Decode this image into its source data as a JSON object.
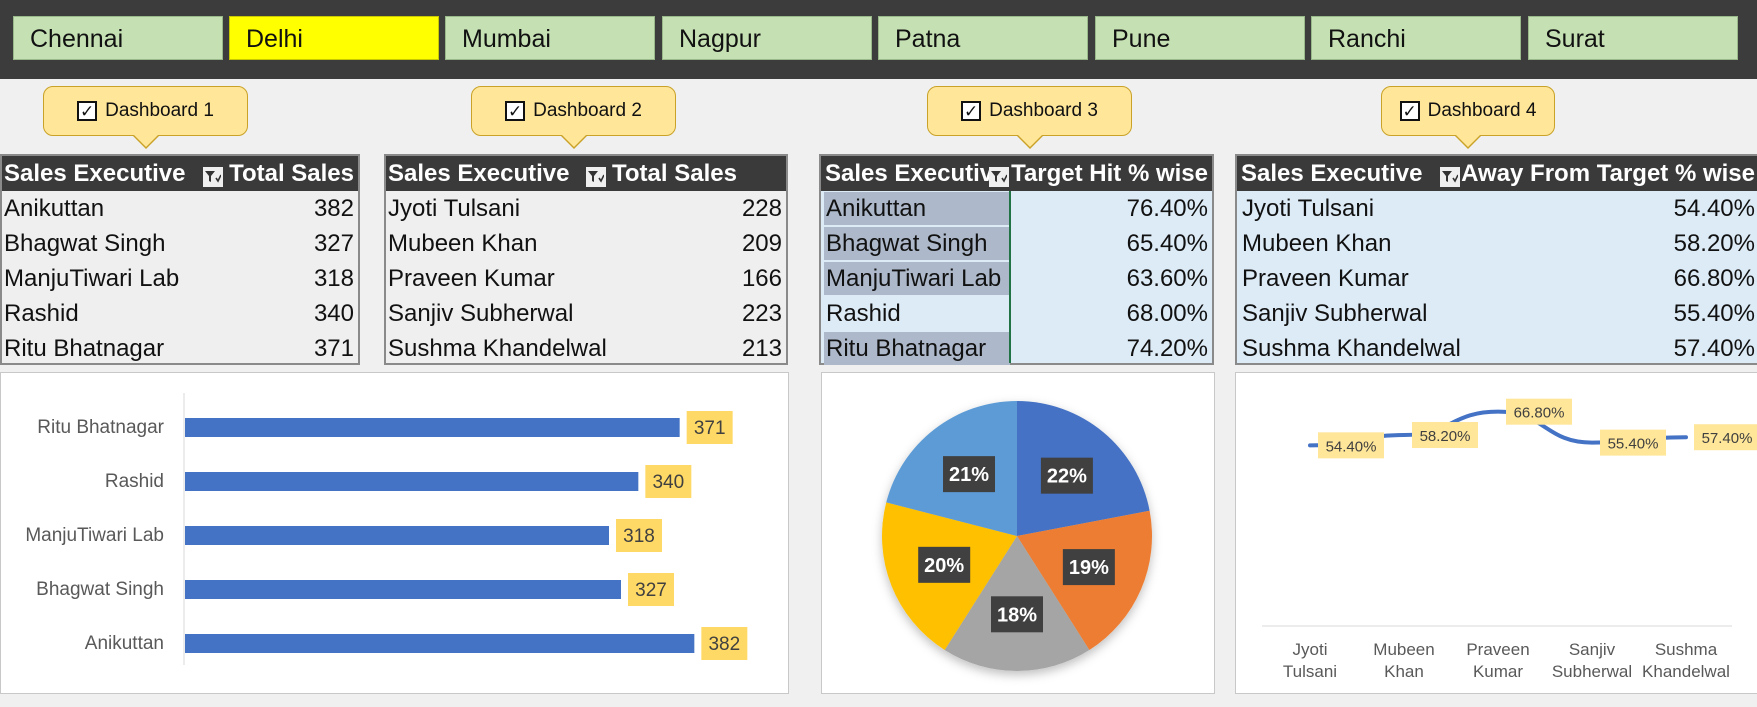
{
  "slicer": {
    "items": [
      {
        "label": "Chennai",
        "selected": false
      },
      {
        "label": "Delhi",
        "selected": true
      },
      {
        "label": "Mumbai",
        "selected": false
      },
      {
        "label": "Nagpur",
        "selected": false
      },
      {
        "label": "Patna",
        "selected": false
      },
      {
        "label": "Pune",
        "selected": false
      },
      {
        "label": "Ranchi",
        "selected": false
      },
      {
        "label": "Surat",
        "selected": false
      }
    ],
    "selected_color": "#ffff00",
    "item_color": "#c5e0b3"
  },
  "dashboards": [
    {
      "label": "Dashboard 1",
      "checked": true
    },
    {
      "label": "Dashboard 2",
      "checked": true
    },
    {
      "label": "Dashboard 3",
      "checked": true
    },
    {
      "label": "Dashboard 4",
      "checked": true
    }
  ],
  "tables": [
    {
      "headers": [
        "Sales Executive",
        "Total Sales"
      ],
      "rows": [
        [
          "Anikuttan",
          "382"
        ],
        [
          "Bhagwat Singh",
          "327"
        ],
        [
          "ManjuTiwari Lab",
          "318"
        ],
        [
          "Rashid",
          "340"
        ],
        [
          "Ritu Bhatnagar",
          "371"
        ]
      ]
    },
    {
      "headers": [
        "Sales Executive",
        "Total Sales"
      ],
      "rows": [
        [
          "Jyoti Tulsani",
          "228"
        ],
        [
          "Mubeen Khan",
          "209"
        ],
        [
          "Praveen Kumar",
          "166"
        ],
        [
          "Sanjiv Subherwal",
          "223"
        ],
        [
          "Sushma Khandelwal",
          "213"
        ]
      ]
    },
    {
      "headers": [
        "Sales Executive",
        "Target Hit % wise"
      ],
      "rows": [
        [
          "Anikuttan",
          "76.40%"
        ],
        [
          "Bhagwat Singh",
          "65.40%"
        ],
        [
          "ManjuTiwari Lab",
          "63.60%"
        ],
        [
          "Rashid",
          "68.00%"
        ],
        [
          "Ritu Bhatnagar",
          "74.20%"
        ]
      ]
    },
    {
      "headers": [
        "Sales Executive",
        "Away From Target % wise"
      ],
      "rows": [
        [
          "Jyoti Tulsani",
          "54.40%"
        ],
        [
          "Mubeen Khan",
          "58.20%"
        ],
        [
          "Praveen Kumar",
          "66.80%"
        ],
        [
          "Sanjiv Subherwal",
          "55.40%"
        ],
        [
          "Sushma Khandelwal",
          "57.40%"
        ]
      ]
    }
  ],
  "chart_data": [
    {
      "type": "bar",
      "orientation": "horizontal",
      "categories": [
        "Ritu Bhatnagar",
        "Rashid",
        "ManjuTiwari Lab",
        "Bhagwat Singh",
        "Anikuttan"
      ],
      "values": [
        371,
        340,
        318,
        327,
        382
      ],
      "data_labels": [
        "371",
        "340",
        "318",
        "327",
        "382"
      ],
      "xlim": [
        0,
        420
      ],
      "bar_color": "#4472c4",
      "label_bg": "#ffd966",
      "grid": false
    },
    {
      "type": "pie",
      "values": [
        22,
        19,
        18,
        20,
        21
      ],
      "data_labels": [
        "22%",
        "19%",
        "18%",
        "20%",
        "21%"
      ],
      "colors": [
        "#4472c4",
        "#ed7d31",
        "#a5a5a5",
        "#ffc000",
        "#5b9bd5"
      ],
      "label_bg": "#404040"
    },
    {
      "type": "line",
      "categories": [
        [
          "Jyoti",
          "Tulsani"
        ],
        [
          "Mubeen",
          "Khan"
        ],
        [
          "Praveen",
          "Kumar"
        ],
        [
          "Sanjiv",
          "Subherwal"
        ],
        [
          "Sushma",
          "Khandelwal"
        ]
      ],
      "values": [
        54.4,
        58.2,
        66.8,
        55.4,
        57.4
      ],
      "data_labels": [
        "54.40%",
        "58.20%",
        "66.80%",
        "55.40%",
        "57.40%"
      ],
      "ylim": [
        0,
        70
      ],
      "line_color": "#4472c4",
      "label_bg": "#ffe699",
      "grid": false
    }
  ]
}
